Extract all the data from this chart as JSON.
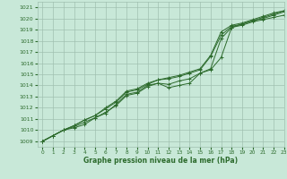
{
  "xlabel": "Graphe pression niveau de la mer (hPa)",
  "xlim": [
    -0.5,
    23
  ],
  "ylim": [
    1008.5,
    1021.5
  ],
  "yticks": [
    1009,
    1010,
    1011,
    1012,
    1013,
    1014,
    1015,
    1016,
    1017,
    1018,
    1019,
    1020,
    1021
  ],
  "xticks": [
    0,
    1,
    2,
    3,
    4,
    5,
    6,
    7,
    8,
    9,
    10,
    11,
    12,
    13,
    14,
    15,
    16,
    17,
    18,
    19,
    20,
    21,
    22,
    23
  ],
  "bg_color": "#c8e8d8",
  "grid_color": "#a0c0b0",
  "line_color": "#2d6b2d",
  "series": [
    {
      "x": [
        0,
        1,
        2,
        3,
        4,
        5,
        6,
        7,
        8,
        9,
        10,
        11,
        12,
        13,
        14,
        15,
        16,
        17,
        18,
        19,
        20,
        21,
        22,
        23
      ],
      "y": [
        1009.0,
        1009.5,
        1010.0,
        1010.2,
        1010.5,
        1011.1,
        1011.5,
        1012.3,
        1013.2,
        1013.4,
        1014.0,
        1014.2,
        1013.8,
        1014.0,
        1014.2,
        1015.1,
        1015.4,
        1016.5,
        1019.2,
        1019.5,
        1019.8,
        1020.0,
        1020.3,
        1020.6
      ]
    },
    {
      "x": [
        0,
        1,
        2,
        3,
        4,
        5,
        6,
        7,
        8,
        9,
        10,
        11,
        12,
        13,
        14,
        15,
        16,
        17,
        18,
        19,
        20,
        21,
        22,
        23
      ],
      "y": [
        1009.0,
        1009.5,
        1010.0,
        1010.3,
        1010.7,
        1011.1,
        1011.6,
        1012.2,
        1013.1,
        1013.3,
        1013.9,
        1014.2,
        1014.1,
        1014.4,
        1014.6,
        1015.1,
        1015.5,
        1018.2,
        1019.2,
        1019.4,
        1019.7,
        1019.9,
        1020.1,
        1020.3
      ]
    },
    {
      "x": [
        0,
        1,
        2,
        3,
        4,
        5,
        6,
        7,
        8,
        9,
        10,
        11,
        12,
        13,
        14,
        15,
        16,
        17,
        18,
        19,
        20,
        21,
        22,
        23
      ],
      "y": [
        1009.0,
        1009.5,
        1010.0,
        1010.4,
        1010.9,
        1011.3,
        1011.9,
        1012.5,
        1013.4,
        1013.6,
        1014.1,
        1014.5,
        1014.6,
        1014.8,
        1015.1,
        1015.4,
        1016.6,
        1018.5,
        1019.3,
        1019.5,
        1019.8,
        1020.1,
        1020.4,
        1020.7
      ]
    },
    {
      "x": [
        0,
        1,
        2,
        3,
        4,
        5,
        6,
        7,
        8,
        9,
        10,
        11,
        12,
        13,
        14,
        15,
        16,
        17,
        18,
        19,
        20,
        21,
        22,
        23
      ],
      "y": [
        1009.0,
        1009.5,
        1010.0,
        1010.4,
        1010.9,
        1011.3,
        1012.0,
        1012.6,
        1013.5,
        1013.7,
        1014.2,
        1014.5,
        1014.7,
        1014.9,
        1015.2,
        1015.5,
        1016.7,
        1018.8,
        1019.4,
        1019.6,
        1019.9,
        1020.2,
        1020.5,
        1020.7
      ]
    }
  ]
}
